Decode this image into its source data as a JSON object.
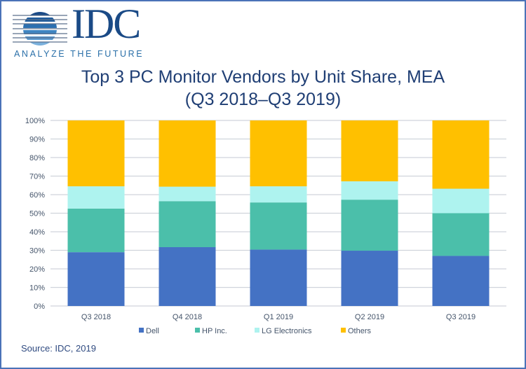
{
  "logo": {
    "name": "IDC",
    "tagline": "ANALYZE THE FUTURE",
    "icon": "idc-striped-globe-icon"
  },
  "title_line1": "Top 3 PC Monitor Vendors by Unit Share, MEA",
  "title_line2": "(Q3 2018–Q3 2019)",
  "source": "Source: IDC, 2019",
  "chart_data": {
    "type": "bar",
    "stacked": true,
    "title": "Top 3 PC Monitor Vendors by Unit Share, MEA (Q3 2018–Q3 2019)",
    "xlabel": "",
    "ylabel": "",
    "categories": [
      "Q3 2018",
      "Q4 2018",
      "Q1 2019",
      "Q2 2019",
      "Q3 2019"
    ],
    "series": [
      {
        "name": "Dell",
        "color": "#4472c4",
        "values": [
          29.0,
          31.7,
          30.4,
          29.8,
          27.0
        ]
      },
      {
        "name": "HP Inc.",
        "color": "#4bbfaa",
        "values": [
          23.5,
          24.8,
          25.4,
          27.5,
          23.0
        ]
      },
      {
        "name": "LG Electronics",
        "color": "#aef3ef",
        "values": [
          12.0,
          7.8,
          8.7,
          9.9,
          13.2
        ]
      },
      {
        "name": "Others",
        "color": "#ffc000",
        "values": [
          35.5,
          35.7,
          35.5,
          32.8,
          36.8
        ]
      }
    ],
    "ylim": [
      0,
      100
    ],
    "yticks": [
      "0%",
      "10%",
      "20%",
      "30%",
      "40%",
      "50%",
      "60%",
      "70%",
      "80%",
      "90%",
      "100%"
    ],
    "grid": true,
    "legend_position": "bottom"
  }
}
